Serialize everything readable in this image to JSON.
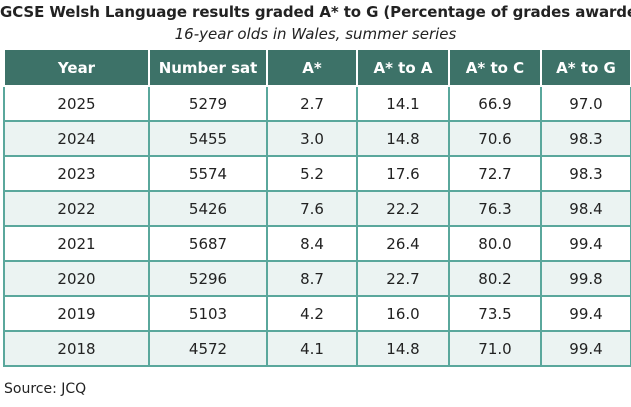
{
  "title": "GCSE Welsh Language results graded A* to G (Percentage of grades awarded)",
  "subtitle": "16-year olds in Wales, summer series",
  "colors": {
    "header_bg": "#3d7268",
    "border": "#5aa79c",
    "stripe": "#ebf3f2"
  },
  "table": {
    "headers": [
      "Year",
      "Number sat",
      "A*",
      "A* to A",
      "A* to C",
      "A* to G"
    ],
    "rows": [
      [
        "2025",
        "5279",
        "2.7",
        "14.1",
        "66.9",
        "97.0"
      ],
      [
        "2024",
        "5455",
        "3.0",
        "14.8",
        "70.6",
        "98.3"
      ],
      [
        "2023",
        "5574",
        "5.2",
        "17.6",
        "72.7",
        "98.3"
      ],
      [
        "2022",
        "5426",
        "7.6",
        "22.2",
        "76.3",
        "98.4"
      ],
      [
        "2021",
        "5687",
        "8.4",
        "26.4",
        "80.0",
        "99.4"
      ],
      [
        "2020",
        "5296",
        "8.7",
        "22.7",
        "80.2",
        "99.8"
      ],
      [
        "2019",
        "5103",
        "4.2",
        "16.0",
        "73.5",
        "99.4"
      ],
      [
        "2018",
        "4572",
        "4.1",
        "14.8",
        "71.0",
        "99.4"
      ]
    ]
  },
  "source": "Source: JCQ"
}
